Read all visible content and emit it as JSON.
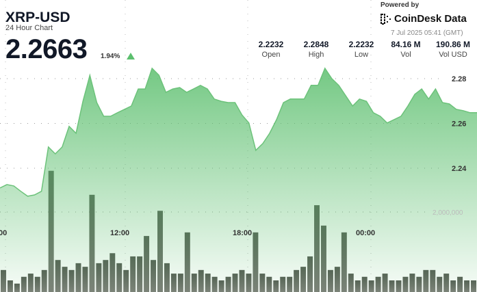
{
  "header": {
    "title": "XRP-USD",
    "subtitle": "24 Hour Chart",
    "price": "2.2663",
    "change": "1.94%",
    "change_direction": "up",
    "powered_by": "Powered by",
    "brand": "CoinDesk Data",
    "timestamp": "7 Jul 2025 05:41 (GMT)"
  },
  "stats": [
    {
      "value": "2.2232",
      "label": "Open"
    },
    {
      "value": "2.2848",
      "label": "High"
    },
    {
      "value": "2.2232",
      "label": "Low"
    },
    {
      "value": "84.16 M",
      "label": "Vol"
    },
    {
      "value": "190.86 M",
      "label": "Vol USD"
    }
  ],
  "colors": {
    "price_fill": "#5cbf6e",
    "price_line": "#6cc27a",
    "volume": "#555a52",
    "up": "#5cbf6e"
  },
  "chart_data": {
    "type": "area",
    "price_ylim": [
      2.22,
      2.29
    ],
    "price_ticks": [
      "2.28",
      "2.26",
      "2.24"
    ],
    "volume_ticks": [
      "2,000,000"
    ],
    "x_tick_labels": [
      "00",
      "12:00",
      "18:00",
      "00:00"
    ],
    "grid": true,
    "x": [
      "06:00",
      "06:20",
      "06:40",
      "07:00",
      "07:20",
      "07:40",
      "08:00",
      "08:20",
      "08:40",
      "09:00",
      "09:20",
      "09:40",
      "10:00",
      "10:20",
      "10:40",
      "11:00",
      "11:20",
      "11:40",
      "12:00",
      "12:20",
      "12:40",
      "13:00",
      "13:20",
      "13:40",
      "14:00",
      "14:20",
      "14:40",
      "15:00",
      "15:20",
      "15:40",
      "16:00",
      "16:20",
      "16:40",
      "17:00",
      "17:20",
      "17:40",
      "18:00",
      "18:20",
      "18:40",
      "19:00",
      "19:20",
      "19:40",
      "20:00",
      "20:20",
      "20:40",
      "21:00",
      "21:20",
      "21:40",
      "22:00",
      "22:20",
      "22:40",
      "23:00",
      "23:20",
      "23:40",
      "00:00",
      "00:20",
      "00:40",
      "01:00",
      "01:20",
      "01:40",
      "02:00",
      "02:20",
      "02:40",
      "03:00",
      "03:20",
      "03:40",
      "04:00",
      "04:20",
      "04:40",
      "05:00"
    ],
    "price": [
      2.2312,
      2.2327,
      2.2321,
      2.2297,
      2.2275,
      2.2281,
      2.2297,
      2.2495,
      2.2464,
      2.2495,
      2.2587,
      2.2556,
      2.2699,
      2.2815,
      2.2693,
      2.2632,
      2.2632,
      2.2648,
      2.2663,
      2.2678,
      2.2754,
      2.2754,
      2.2846,
      2.2815,
      2.2739,
      2.2754,
      2.276,
      2.2739,
      2.2754,
      2.277,
      2.2754,
      2.2709,
      2.2699,
      2.2693,
      2.2693,
      2.2638,
      2.2602,
      2.248,
      2.251,
      2.2556,
      2.2617,
      2.2693,
      2.2709,
      2.2709,
      2.2709,
      2.277,
      2.277,
      2.2846,
      2.28,
      2.277,
      2.2724,
      2.2678,
      2.2709,
      2.2699,
      2.2648,
      2.2632,
      2.2602,
      2.2617,
      2.2632,
      2.2678,
      2.273,
      2.2754,
      2.2709,
      2.2754,
      2.2693,
      2.2687,
      2.2663,
      2.2657,
      2.2648,
      2.2648
    ],
    "volume": [
      550000,
      290000,
      210000,
      380000,
      460000,
      380000,
      550000,
      3030000,
      800000,
      630000,
      550000,
      720000,
      630000,
      2430000,
      720000,
      800000,
      970000,
      720000,
      550000,
      890000,
      890000,
      1400000,
      800000,
      2030000,
      720000,
      460000,
      460000,
      1490000,
      460000,
      550000,
      460000,
      380000,
      290000,
      380000,
      460000,
      550000,
      460000,
      1490000,
      460000,
      380000,
      290000,
      380000,
      380000,
      550000,
      630000,
      890000,
      2170000,
      1660000,
      550000,
      630000,
      1490000,
      460000,
      290000,
      380000,
      290000,
      380000,
      460000,
      290000,
      290000,
      380000,
      460000,
      380000,
      550000,
      550000,
      380000,
      460000,
      290000,
      380000,
      290000,
      290000
    ]
  }
}
